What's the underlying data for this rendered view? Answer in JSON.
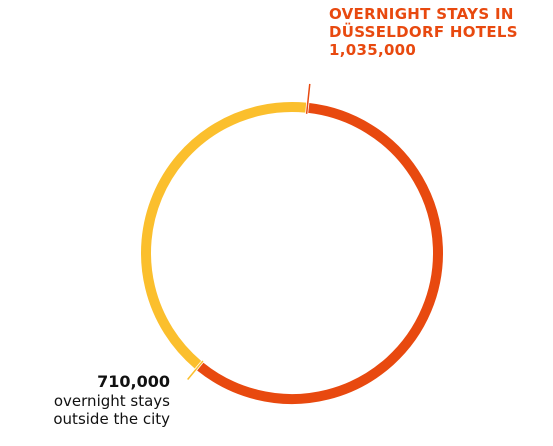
{
  "chart_data": {
    "type": "pie",
    "style": "donut",
    "slices": [
      {
        "label_lines": [
          "OVERNIGHT STAYS IN",
          "DÜSSELDORF HOTELS"
        ],
        "value": 1035000,
        "value_label": "1,035,000",
        "color": "#e8490f"
      },
      {
        "label_lines": [
          "overnight stays",
          "outside the city"
        ],
        "value": 710000,
        "value_label": "710,000",
        "color": "#fbbf2d"
      }
    ]
  }
}
